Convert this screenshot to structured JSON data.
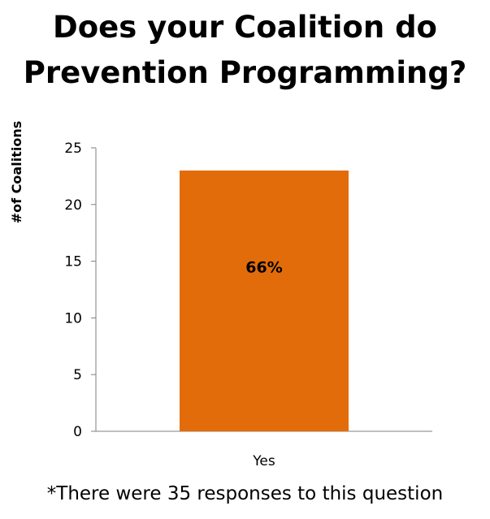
{
  "chart_data": {
    "type": "bar",
    "title": "Does your Coalition do Prevention Programming?",
    "categories": [
      "Yes"
    ],
    "values": [
      23
    ],
    "data_labels": [
      "66%"
    ],
    "xlabel": "",
    "ylabel": "#of Coalitions",
    "ylim": [
      0,
      25
    ],
    "yticks": [
      0,
      5,
      10,
      15,
      20,
      25
    ],
    "grid": false,
    "legend": "none",
    "bar_color": "#e36c0a"
  },
  "footnote": "*There were 35 responses to this question"
}
